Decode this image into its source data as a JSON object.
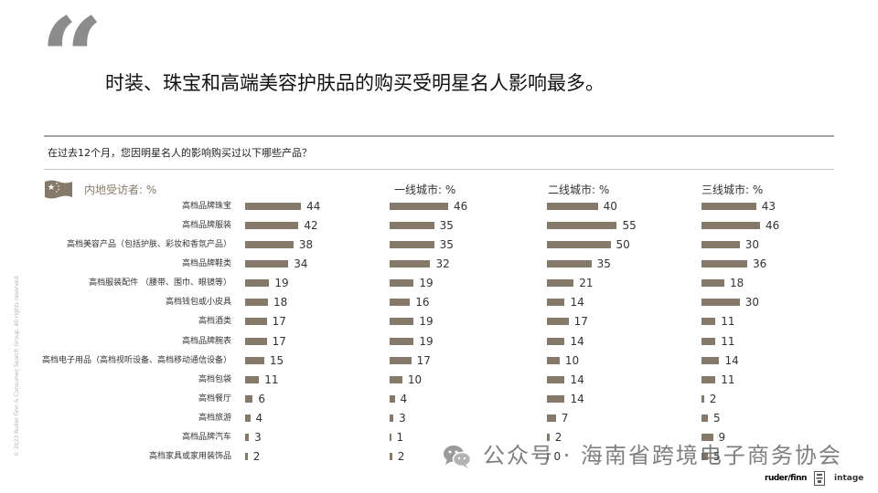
{
  "slide": {
    "quote_mark": "“",
    "title": "时装、珠宝和高端美容护肤品的购买受明星名人影响最多。",
    "question": "在过去12个月，您因明星名人的影响购买过以下哪些产品？",
    "copyright": "© 2023 Ruder Finn & Consumer Search Group. All rights reserved.",
    "watermark": "公众号 · 海南省跨境电子商务协会",
    "logos": {
      "ruder_finn": "ruder/finn",
      "intage": "intage"
    },
    "icons": {
      "flag": "china-flag-icon",
      "watermark": "wechat-icon",
      "partner": "partner-logo-icon"
    }
  },
  "colors": {
    "bar": "#857a6a",
    "header_accent": "#857a6a",
    "rule": "#a6a6a6"
  },
  "chart_data": {
    "type": "bar",
    "orientation": "horizontal",
    "title": "",
    "xlabel": "",
    "ylabel": "",
    "grid": false,
    "legend": "none",
    "categories": [
      "高档品牌珠宝",
      "高档品牌服装",
      "高档美容产品（包括护肤、彩妆和香氛产品）",
      "高档品牌鞋类",
      "高档服装配件 （腰带、围巾、眼镜等）",
      "高档钱包或小皮具",
      "高档酒类",
      "高档品牌腕表",
      "高档电子用品（高档视听设备、高档移动通信设备）",
      "高档包袋",
      "高档餐厅",
      "高档旅游",
      "高档品牌汽车",
      "高档家具或家用装饰品"
    ],
    "series": [
      {
        "name": "内地受访者: %",
        "values": [
          44,
          42,
          38,
          34,
          19,
          18,
          17,
          17,
          15,
          11,
          6,
          4,
          3,
          2
        ]
      },
      {
        "name": "一线城市: %",
        "values": [
          46,
          35,
          35,
          32,
          19,
          16,
          19,
          19,
          17,
          10,
          4,
          3,
          1,
          2
        ]
      },
      {
        "name": "二线城市: %",
        "values": [
          40,
          55,
          50,
          35,
          21,
          14,
          17,
          14,
          10,
          14,
          14,
          7,
          2,
          0
        ]
      },
      {
        "name": "三线城市: %",
        "values": [
          43,
          46,
          30,
          36,
          18,
          30,
          11,
          11,
          14,
          11,
          2,
          5,
          9,
          5
        ]
      }
    ]
  }
}
